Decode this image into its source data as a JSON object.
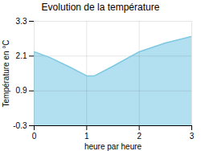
{
  "chart_data": {
    "type": "area",
    "title": "Evolution de la température",
    "xlabel": "heure par heure",
    "ylabel": "Température en °C",
    "x": [
      0,
      0.3,
      0.7,
      1.0,
      1.15,
      1.5,
      2.0,
      2.5,
      3.0
    ],
    "values": [
      2.25,
      2.05,
      1.7,
      1.42,
      1.42,
      1.75,
      2.25,
      2.55,
      2.78
    ],
    "colors": [
      "#b3e0f0",
      "#7ec8e3"
    ],
    "xlim": [
      0,
      3
    ],
    "ylim": [
      -0.3,
      3.3
    ],
    "xticks": [
      0,
      1,
      2,
      3
    ],
    "yticks": [
      -0.3,
      0.9,
      2.1,
      3.3
    ],
    "grid": true
  }
}
